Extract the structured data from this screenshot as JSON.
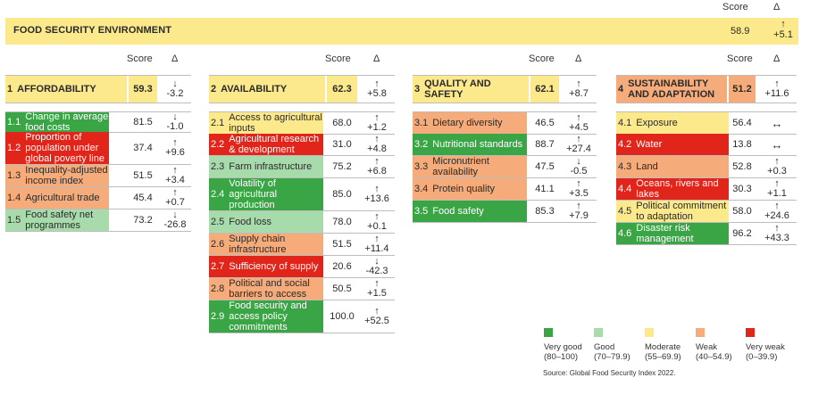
{
  "header": {
    "score_label": "Score",
    "delta_symbol": "Δ"
  },
  "top": {
    "title": "FOOD SECURITY ENVIRONMENT",
    "score": "58.9",
    "delta_arrow": "↑",
    "delta": "+5.1"
  },
  "colors": {
    "very_good": "#3aa545",
    "good": "#a8dbac",
    "moderate": "#fce98b",
    "weak": "#f5ac7a",
    "very_weak": "#e1251b"
  },
  "pillars": [
    {
      "num": "1",
      "name": "AFFORDABILITY",
      "score": "59.3",
      "arrow": "↓",
      "delta": "-3.2",
      "color": "moderate",
      "items": [
        {
          "num": "1.1",
          "label": "Change in average food costs",
          "score": "81.5",
          "arrow": "↓",
          "delta": "-1.0",
          "color": "very_good"
        },
        {
          "num": "1.2",
          "label": "Proportion of population under global poverty line",
          "score": "37.4",
          "arrow": "↑",
          "delta": "+9.6",
          "color": "very_weak"
        },
        {
          "num": "1.3",
          "label": "Inequality-adjusted income index",
          "score": "51.5",
          "arrow": "↑",
          "delta": "+3.4",
          "color": "weak"
        },
        {
          "num": "1.4",
          "label": "Agricultural trade",
          "score": "45.4",
          "arrow": "↑",
          "delta": "+0.7",
          "color": "weak"
        },
        {
          "num": "1.5",
          "label": "Food safety net programmes",
          "score": "73.2",
          "arrow": "↓",
          "delta": "-26.8",
          "color": "good"
        }
      ]
    },
    {
      "num": "2",
      "name": "AVAILABILITY",
      "score": "62.3",
      "arrow": "↑",
      "delta": "+5.8",
      "color": "moderate",
      "items": [
        {
          "num": "2.1",
          "label": "Access to agricultural inputs",
          "score": "68.0",
          "arrow": "↑",
          "delta": "+1.2",
          "color": "moderate"
        },
        {
          "num": "2.2",
          "label": "Agricultural research & development",
          "score": "31.0",
          "arrow": "↑",
          "delta": "+4.8",
          "color": "very_weak"
        },
        {
          "num": "2.3",
          "label": "Farm infrastructure",
          "score": "75.2",
          "arrow": "↑",
          "delta": "+6.8",
          "color": "good"
        },
        {
          "num": "2.4",
          "label": "Volatility of agricultural production",
          "score": "85.0",
          "arrow": "↑",
          "delta": "+13.6",
          "color": "very_good"
        },
        {
          "num": "2.5",
          "label": "Food loss",
          "score": "78.0",
          "arrow": "↑",
          "delta": "+0.1",
          "color": "good"
        },
        {
          "num": "2.6",
          "label": "Supply chain infrastructure",
          "score": "51.5",
          "arrow": "↑",
          "delta": "+11.4",
          "color": "weak"
        },
        {
          "num": "2.7",
          "label": "Sufficiency of supply",
          "score": "20.6",
          "arrow": "↓",
          "delta": "-42.3",
          "color": "very_weak"
        },
        {
          "num": "2.8",
          "label": "Political and social barriers to access",
          "score": "50.5",
          "arrow": "↑",
          "delta": "+1.5",
          "color": "weak"
        },
        {
          "num": "2.9",
          "label": "Food security and access policy commitments",
          "score": "100.0",
          "arrow": "↑",
          "delta": "+52.5",
          "color": "very_good"
        }
      ]
    },
    {
      "num": "3",
      "name": "QUALITY AND SAFETY",
      "score": "62.1",
      "arrow": "↑",
      "delta": "+8.7",
      "color": "moderate",
      "items": [
        {
          "num": "3.1",
          "label": "Dietary diversity",
          "score": "46.5",
          "arrow": "↑",
          "delta": "+4.5",
          "color": "weak"
        },
        {
          "num": "3.2",
          "label": "Nutritional standards",
          "score": "88.7",
          "arrow": "↑",
          "delta": "+27.4",
          "color": "very_good"
        },
        {
          "num": "3.3",
          "label": "Micronutrient availability",
          "score": "47.5",
          "arrow": "↓",
          "delta": "-0.5",
          "color": "weak"
        },
        {
          "num": "3.4",
          "label": "Protein quality",
          "score": "41.1",
          "arrow": "↑",
          "delta": "+3.5",
          "color": "weak"
        },
        {
          "num": "3.5",
          "label": "Food safety",
          "score": "85.3",
          "arrow": "↑",
          "delta": "+7.9",
          "color": "very_good"
        }
      ]
    },
    {
      "num": "4",
      "name": "SUSTAINABILITY AND ADAPTATION",
      "score": "51.2",
      "arrow": "↑",
      "delta": "+11.6",
      "color": "weak",
      "items": [
        {
          "num": "4.1",
          "label": "Exposure",
          "score": "56.4",
          "arrow": "↔",
          "delta": "",
          "color": "moderate"
        },
        {
          "num": "4.2",
          "label": "Water",
          "score": "13.8",
          "arrow": "↔",
          "delta": "",
          "color": "very_weak"
        },
        {
          "num": "4.3",
          "label": "Land",
          "score": "52.8",
          "arrow": "↑",
          "delta": "+0.3",
          "color": "weak"
        },
        {
          "num": "4.4",
          "label": "Oceans, rivers and lakes",
          "score": "30.3",
          "arrow": "↑",
          "delta": "+1.1",
          "color": "very_weak"
        },
        {
          "num": "4.5",
          "label": "Political commitment to adaptation",
          "score": "58.0",
          "arrow": "↑",
          "delta": "+24.6",
          "color": "moderate"
        },
        {
          "num": "4.6",
          "label": "Disaster risk management",
          "score": "96.2",
          "arrow": "↑",
          "delta": "+43.3",
          "color": "very_good"
        }
      ]
    }
  ],
  "legend": [
    {
      "label": "Very good",
      "range": "(80–100)",
      "color": "very_good"
    },
    {
      "label": "Good",
      "range": "(70–79.9)",
      "color": "good"
    },
    {
      "label": "Moderate",
      "range": "(55–69.9)",
      "color": "moderate"
    },
    {
      "label": "Weak",
      "range": "(40–54.9)",
      "color": "weak"
    },
    {
      "label": "Very weak",
      "range": "(0–39.9)",
      "color": "very_weak"
    }
  ],
  "source": "Source: Global Food Security Index 2022."
}
